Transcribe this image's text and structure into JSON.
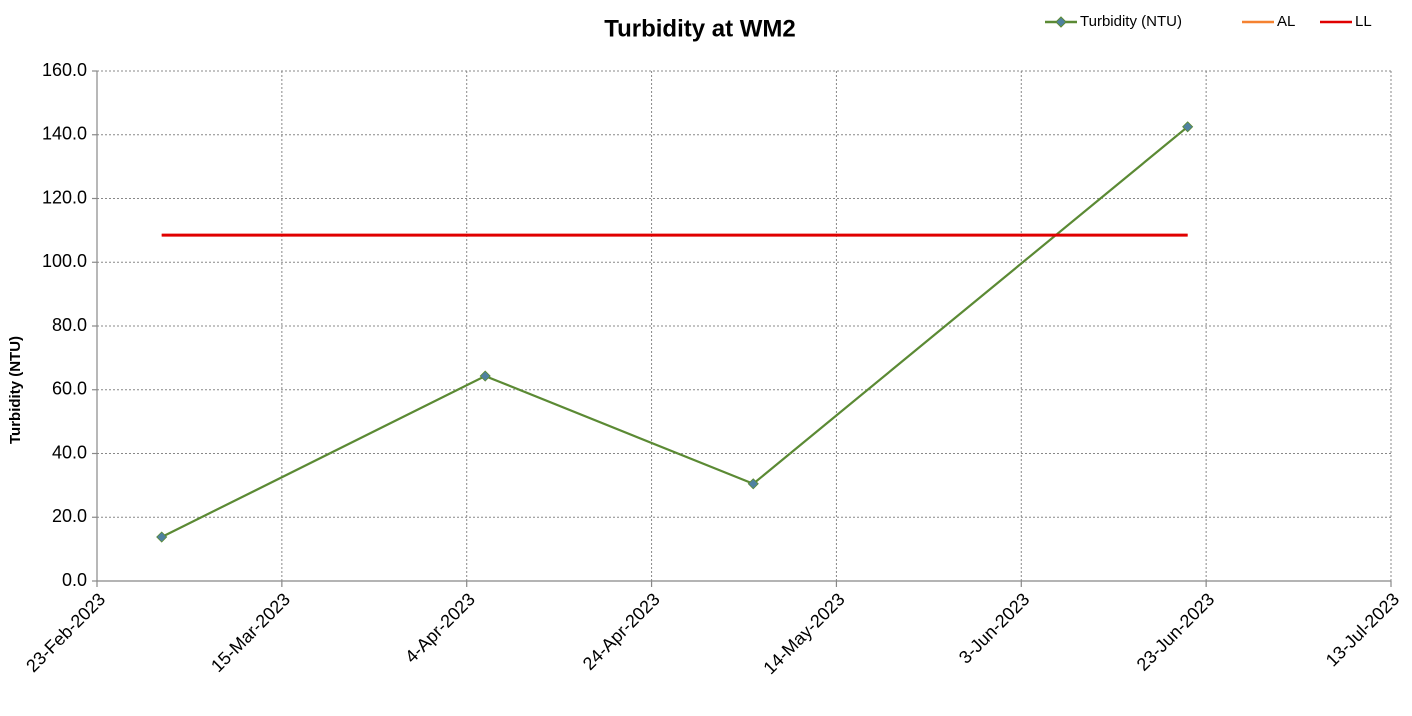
{
  "chart_data": {
    "type": "line",
    "title": "Turbidity at WM2",
    "y_label": "Turbidity (NTU)",
    "series": [
      {
        "name": "Turbidity (NTU)",
        "color": "#5b8a34",
        "marker_color": "#4f81a0",
        "marker": "diamond",
        "x": [
          "2023-03-02",
          "2023-04-06",
          "2023-05-05",
          "2023-06-21"
        ],
        "values": [
          13.8,
          64.3,
          30.5,
          142.5
        ]
      },
      {
        "name": "AL",
        "color": "#f58231",
        "x": [
          "2023-03-02",
          "2023-06-21"
        ],
        "values": [
          108.5,
          108.5
        ]
      },
      {
        "name": "LL",
        "color": "#e00000",
        "x": [
          "2023-03-02",
          "2023-06-21"
        ],
        "values": [
          108.5,
          108.5
        ]
      }
    ],
    "xlim": [
      "2023-02-23",
      "2023-07-13"
    ],
    "xticks": [
      {
        "value": "2023-02-23",
        "label": "23-Feb-2023"
      },
      {
        "value": "2023-03-15",
        "label": "15-Mar-2023"
      },
      {
        "value": "2023-04-04",
        "label": "4-Apr-2023"
      },
      {
        "value": "2023-04-24",
        "label": "24-Apr-2023"
      },
      {
        "value": "2023-05-14",
        "label": "14-May-2023"
      },
      {
        "value": "2023-06-03",
        "label": "3-Jun-2023"
      },
      {
        "value": "2023-06-23",
        "label": "23-Jun-2023"
      },
      {
        "value": "2023-07-13",
        "label": "13-Jul-2023"
      }
    ],
    "ylim": [
      0,
      160
    ],
    "yticks": [
      {
        "value": 0,
        "label": "0.0"
      },
      {
        "value": 20,
        "label": "20.0"
      },
      {
        "value": 40,
        "label": "40.0"
      },
      {
        "value": 60,
        "label": "60.0"
      },
      {
        "value": 80,
        "label": "80.0"
      },
      {
        "value": 100,
        "label": "100.0"
      },
      {
        "value": 120,
        "label": "120.0"
      },
      {
        "value": 140,
        "label": "140.0"
      },
      {
        "value": 160,
        "label": "160.0"
      }
    ],
    "grid": true,
    "legend": "top-right"
  }
}
